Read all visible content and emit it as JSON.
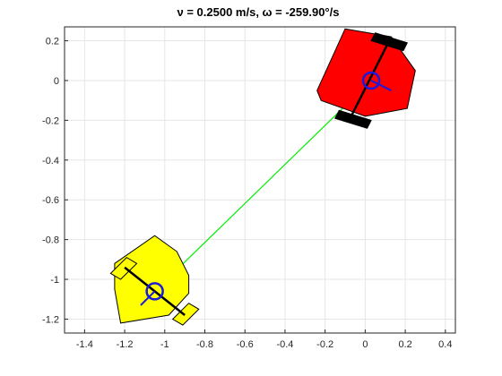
{
  "chart_data": {
    "type": "scatter",
    "title": "ν = 0.2500 m/s, ω = -259.90°/s",
    "xlim": [
      -1.5,
      0.45
    ],
    "ylim": [
      -1.27,
      0.27
    ],
    "grid": true,
    "xticks": [
      -1.4,
      -1.2,
      -1,
      -0.8,
      -0.6,
      -0.4,
      -0.2,
      0,
      0.2,
      0.4
    ],
    "xtick_labels": [
      "-1.4",
      "-1.2",
      "-1",
      "-0.8",
      "-0.6",
      "-0.4",
      "-0.2",
      "0",
      "0.2",
      "0.4"
    ],
    "yticks": [
      0.2,
      0,
      -0.2,
      -0.4,
      -0.6,
      -0.8,
      -1,
      -1.2
    ],
    "ytick_labels": [
      "0.2",
      "0",
      "-0.2",
      "-0.4",
      "-0.6",
      "-0.8",
      "-1",
      "-1.2"
    ],
    "link_line": {
      "color": "#00ee00",
      "from": [
        -1.05,
        -1.06
      ],
      "to": [
        0.03,
        0.0
      ]
    },
    "robots": [
      {
        "body_color": "#ff0000",
        "center": [
          0.03,
          0.0
        ],
        "body": [
          [
            -0.1,
            0.26
          ],
          [
            0.13,
            0.22
          ],
          [
            0.25,
            0.05
          ],
          [
            0.21,
            -0.14
          ],
          [
            0.0,
            -0.18
          ],
          [
            -0.22,
            -0.1
          ],
          [
            -0.24,
            -0.05
          ]
        ],
        "axle": [
          [
            0.11,
            0.18
          ],
          [
            -0.07,
            -0.18
          ]
        ],
        "wheels": [
          [
            [
              0.05,
              0.24
            ],
            [
              0.21,
              0.19
            ],
            [
              0.19,
              0.15
            ],
            [
              0.03,
              0.2
            ]
          ],
          [
            [
              -0.13,
              -0.15
            ],
            [
              0.03,
              -0.2
            ],
            [
              0.01,
              -0.24
            ],
            [
              -0.15,
              -0.19
            ]
          ]
        ],
        "heading": [
          [
            0.03,
            0.0
          ],
          [
            0.13,
            -0.05
          ]
        ]
      },
      {
        "body_color": "#ffff00",
        "center": [
          -1.05,
          -1.06
        ],
        "body": [
          [
            -1.25,
            -0.92
          ],
          [
            -1.05,
            -0.78
          ],
          [
            -0.94,
            -0.86
          ],
          [
            -0.88,
            -0.98
          ],
          [
            -0.88,
            -1.07
          ],
          [
            -0.98,
            -1.18
          ],
          [
            -1.22,
            -1.22
          ],
          [
            -1.25,
            -1.05
          ]
        ],
        "axle": [
          [
            -1.2,
            -0.94
          ],
          [
            -0.9,
            -1.18
          ]
        ],
        "wheels": [
          [
            [
              -1.27,
              -0.97
            ],
            [
              -1.19,
              -0.89
            ],
            [
              -1.14,
              -0.92
            ],
            [
              -1.22,
              -1.0
            ]
          ],
          [
            [
              -0.96,
              -1.2
            ],
            [
              -0.88,
              -1.12
            ],
            [
              -0.83,
              -1.15
            ],
            [
              -0.91,
              -1.23
            ]
          ]
        ],
        "heading": [
          [
            -1.05,
            -1.06
          ],
          [
            -1.12,
            -1.13
          ]
        ]
      }
    ]
  }
}
